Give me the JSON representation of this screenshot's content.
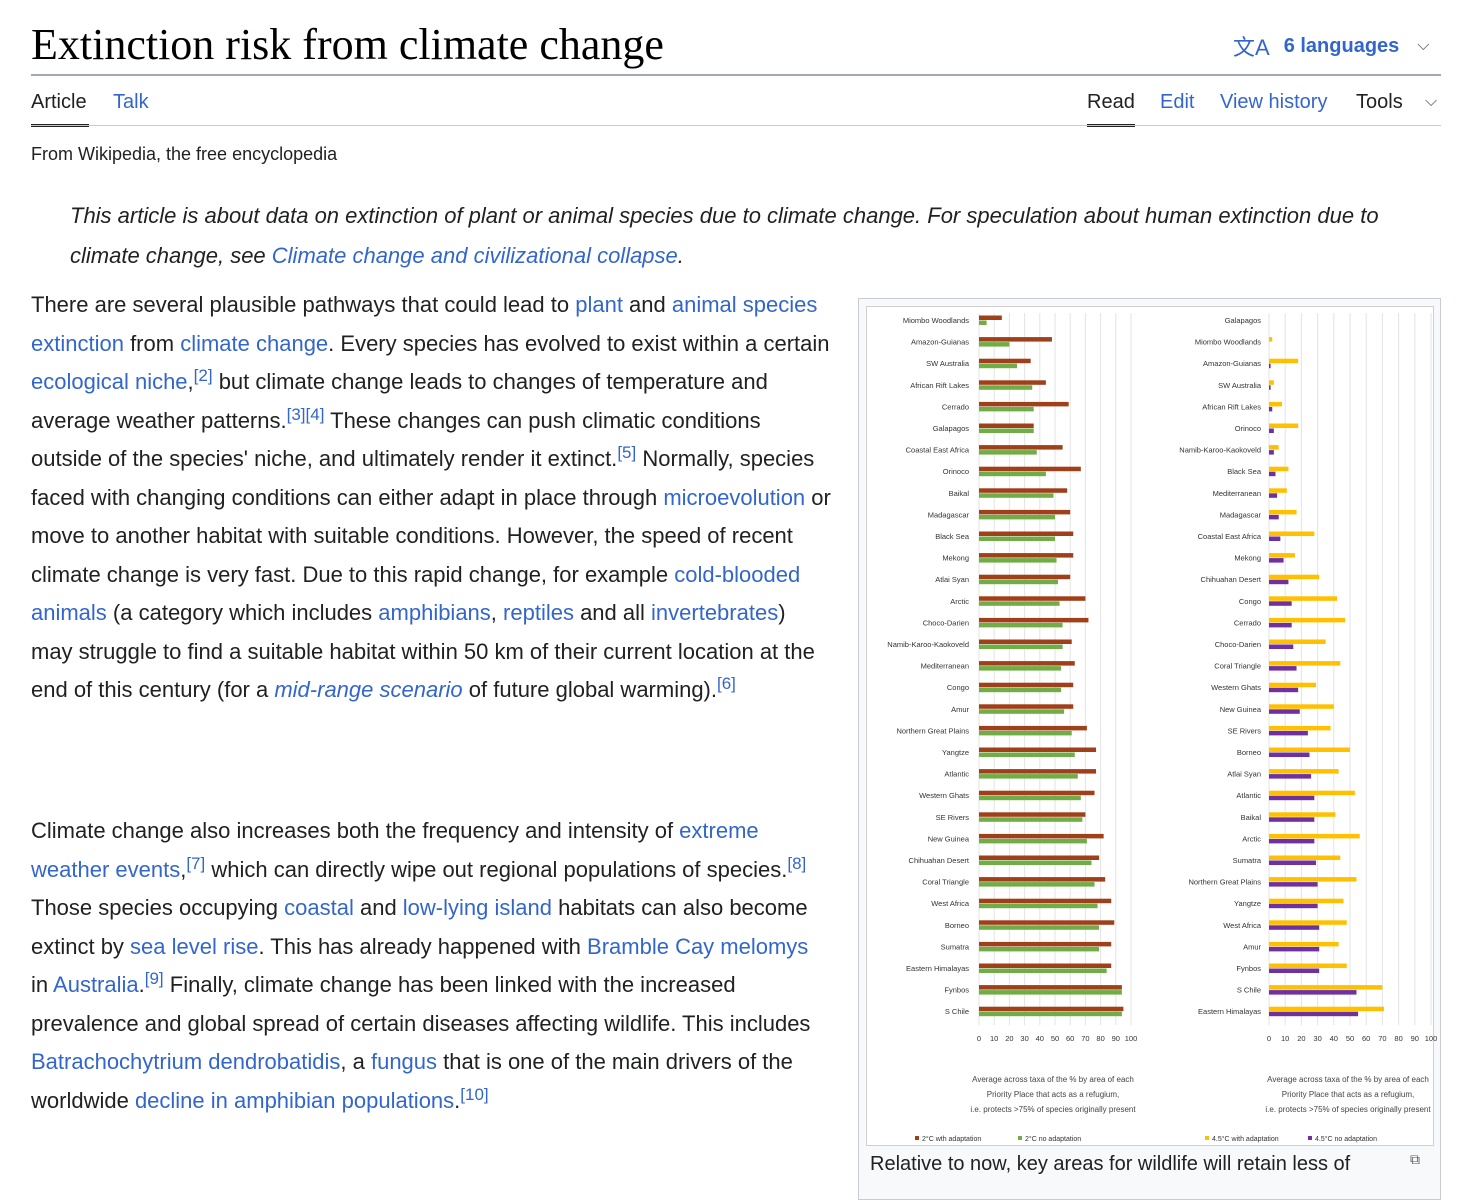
{
  "page": {
    "title": "Extinction risk from climate change",
    "languages": {
      "icon": "translate-icon",
      "label": "6 languages"
    },
    "tabs_left": [
      "Article",
      "Talk"
    ],
    "tabs_right": [
      "Read",
      "Edit",
      "View history",
      "Tools"
    ],
    "tagline": "From Wikipedia, the free encyclopedia"
  },
  "hatnote": {
    "text1": "This article is about data on extinction of plant or animal species due to climate change. For speculation about human extinction due to climate change, see ",
    "link": "Climate change and civilizational collapse",
    "text2": "."
  },
  "paragraph1": [
    {
      "t": "There are several plausible pathways that could lead to "
    },
    {
      "t": "plant",
      "link": true
    },
    {
      "t": " and "
    },
    {
      "t": "animal species extinction",
      "link": true
    },
    {
      "t": " from "
    },
    {
      "t": "climate change",
      "link": true
    },
    {
      "t": ". Every species has evolved to exist within a certain "
    },
    {
      "t": "ecological niche",
      "link": true
    },
    {
      "t": ","
    },
    {
      "t": "[2]",
      "sup": true
    },
    {
      "t": " but climate change leads to changes of temperature and average weather patterns."
    },
    {
      "t": "[3]",
      "sup": true
    },
    {
      "t": "[4]",
      "sup": true
    },
    {
      "t": " These changes can push climatic conditions outside of the species' niche, and ultimately render it extinct."
    },
    {
      "t": "[5]",
      "sup": true
    },
    {
      "t": " Normally, species faced with changing conditions can either adapt in place through "
    },
    {
      "t": "microevolution",
      "link": true
    },
    {
      "t": " or move to another habitat with suitable conditions. However, the speed of recent climate change is very fast. Due to this rapid change, for example "
    },
    {
      "t": "cold-blooded animals",
      "link": true
    },
    {
      "t": " (a category which includes "
    },
    {
      "t": "amphibians",
      "link": true
    },
    {
      "t": ", "
    },
    {
      "t": "reptiles",
      "link": true
    },
    {
      "t": " and all "
    },
    {
      "t": "invertebrates",
      "link": true
    },
    {
      "t": ") may struggle to find a suitable habitat within 50 km of their current location at the end of this century (for a "
    },
    {
      "t": "mid-range scenario",
      "link": true,
      "italic": true
    },
    {
      "t": " of future global warming)."
    },
    {
      "t": "[6]",
      "sup": true
    }
  ],
  "paragraph2": [
    {
      "t": "Climate change also increases both the frequency and intensity of "
    },
    {
      "t": "extreme weather events",
      "link": true
    },
    {
      "t": ","
    },
    {
      "t": "[7]",
      "sup": true
    },
    {
      "t": " which can directly wipe out regional populations of species."
    },
    {
      "t": "[8]",
      "sup": true
    },
    {
      "t": " Those species occupying "
    },
    {
      "t": "coastal",
      "link": true
    },
    {
      "t": " and "
    },
    {
      "t": "low-lying island",
      "link": true
    },
    {
      "t": " habitats can also become extinct by "
    },
    {
      "t": "sea level rise",
      "link": true
    },
    {
      "t": ". This has already happened with "
    },
    {
      "t": "Bramble Cay melomys",
      "link": true
    },
    {
      "t": " in "
    },
    {
      "t": "Australia",
      "link": true
    },
    {
      "t": "."
    },
    {
      "t": "[9]",
      "sup": true
    },
    {
      "t": " Finally, climate change has been linked with the increased prevalence and global spread of certain diseases affecting wildlife. This includes "
    },
    {
      "t": "Batrachochytrium dendrobatidis",
      "link": true
    },
    {
      "t": ", a "
    },
    {
      "t": "fungus",
      "link": true
    },
    {
      "t": " that is one of the main drivers of the worldwide "
    },
    {
      "t": "decline in amphibian populations",
      "link": true
    },
    {
      "t": "."
    },
    {
      "t": "[10]",
      "sup": true
    }
  ],
  "figure": {
    "caption": "Relative to now, key areas for wildlife will retain less of",
    "expand_icon": "expand-icon"
  },
  "chart_data": [
    {
      "type": "bar",
      "orientation": "horizontal",
      "categories": [
        "Miombo Woodlands",
        "Amazon-Guianas",
        "SW Australia",
        "African Rift Lakes",
        "Cerrado",
        "Galapagos",
        "Coastal East Africa",
        "Orinoco",
        "Baikal",
        "Madagascar",
        "Black Sea",
        "Mekong",
        "Atlai Syan",
        "Arctic",
        "Choco-Darien",
        "Namib-Karoo-Kaokoveld",
        "Mediterranean",
        "Congo",
        "Amur",
        "Northern Great Plains",
        "Yangtze",
        "Atlantic",
        "Western Ghats",
        "SE Rivers",
        "New Guinea",
        "Chihuahan Desert",
        "Coral Triangle",
        "West Africa",
        "Borneo",
        "Sumatra",
        "Eastern Himalayas",
        "Fynbos",
        "S Chile"
      ],
      "series": [
        {
          "name": "2°C wth adaptation",
          "color": "#a0401a",
          "values": [
            15,
            48,
            34,
            44,
            59,
            36,
            55,
            67,
            58,
            60,
            62,
            62,
            60,
            70,
            72,
            61,
            63,
            62,
            62,
            71,
            77,
            77,
            76,
            70,
            82,
            79,
            83,
            87,
            89,
            87,
            87,
            94,
            95
          ]
        },
        {
          "name": "2°C no adaptation",
          "color": "#70ad47",
          "values": [
            5,
            20,
            25,
            35,
            36,
            36,
            38,
            44,
            49,
            50,
            50,
            51,
            52,
            53,
            55,
            55,
            54,
            54,
            56,
            61,
            63,
            65,
            67,
            68,
            71,
            74,
            76,
            78,
            79,
            79,
            84,
            94,
            94
          ]
        }
      ],
      "xlim": [
        0,
        100
      ],
      "xticks": [
        "0",
        "10",
        "20",
        "30",
        "40",
        "50",
        "60",
        "70",
        "80",
        "90",
        "100"
      ],
      "xlabel": [
        "Average across taxa of the % by area of each",
        "Priority Place that acts as a refugium,",
        "i.e. protects >75% of species originally present"
      ]
    },
    {
      "type": "bar",
      "orientation": "horizontal",
      "categories": [
        "Galapagos",
        "Miombo Woodlands",
        "Amazon-Guianas",
        "SW Australia",
        "African Rift Lakes",
        "Orinoco",
        "Namib-Karoo-Kaokoveld",
        "Black Sea",
        "Mediterranean",
        "Madagascar",
        "Coastal East Africa",
        "Mekong",
        "Chihuahan Desert",
        "Congo",
        "Cerrado",
        "Choco-Darien",
        "Coral Triangle",
        "Western Ghats",
        "New Guinea",
        "SE Rivers",
        "Borneo",
        "Atlai Syan",
        "Atlantic",
        "Baikal",
        "Arctic",
        "Sumatra",
        "Northern Great Plains",
        "Yangtze",
        "West Africa",
        "Amur",
        "Fynbos",
        "S Chile",
        "Eastern Himalayas"
      ],
      "series": [
        {
          "name": "4.5°C with adaptation",
          "color": "#ffc000",
          "values": [
            0,
            2,
            18,
            3,
            8,
            18,
            6,
            12,
            11,
            17,
            28,
            16,
            31,
            42,
            47,
            35,
            44,
            29,
            40,
            38,
            50,
            43,
            53,
            41,
            56,
            44,
            54,
            46,
            48,
            43,
            48,
            70,
            71
          ]
        },
        {
          "name": "4.5°C no adaptation",
          "color": "#7030a0",
          "values": [
            0,
            0,
            1,
            1,
            2,
            3,
            3,
            4,
            5,
            6,
            7,
            9,
            12,
            14,
            14,
            15,
            17,
            18,
            19,
            24,
            25,
            26,
            28,
            28,
            28,
            29,
            30,
            30,
            31,
            31,
            31,
            54,
            55
          ]
        }
      ],
      "xlim": [
        0,
        100
      ],
      "xticks": [
        "0",
        "10",
        "20",
        "30",
        "40",
        "50",
        "60",
        "70",
        "80",
        "90",
        "100"
      ],
      "xlabel": [
        "Average across taxa of the % by area of each",
        "Priority Place that acts as a refugium,",
        "i.e. protects >75% of species originally present"
      ]
    }
  ]
}
